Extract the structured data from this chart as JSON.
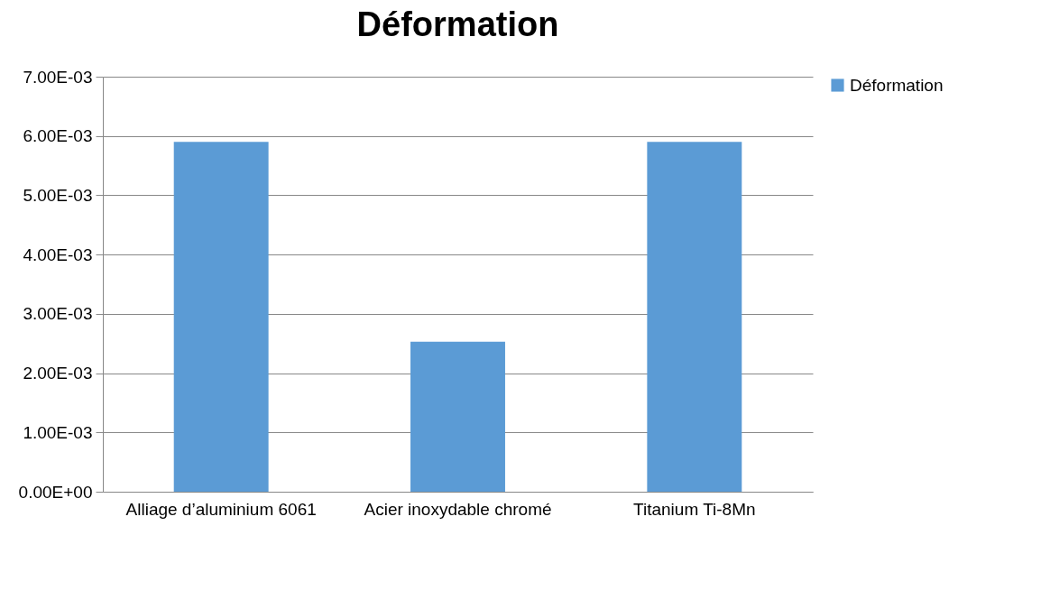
{
  "chart_data": {
    "type": "bar",
    "title": "Déformation",
    "categories": [
      "Alliage d’aluminium 6061",
      "Acier inoxydable chromé",
      "Titanium Ti-8Mn"
    ],
    "series": [
      {
        "name": "Déformation",
        "color": "#5b9bd5",
        "values": [
          0.0059,
          0.00253,
          0.0059
        ]
      }
    ],
    "ylim": [
      0,
      0.007
    ],
    "yticks": [
      {
        "value": 0,
        "label": "0.00E+00"
      },
      {
        "value": 0.001,
        "label": "1.00E-03"
      },
      {
        "value": 0.002,
        "label": "2.00E-03"
      },
      {
        "value": 0.003,
        "label": "3.00E-03"
      },
      {
        "value": 0.004,
        "label": "4.00E-03"
      },
      {
        "value": 0.005,
        "label": "5.00E-03"
      },
      {
        "value": 0.006,
        "label": "6.00E-03"
      },
      {
        "value": 0.007,
        "label": "7.00E-03"
      }
    ],
    "grid": "y",
    "legend": "right"
  }
}
